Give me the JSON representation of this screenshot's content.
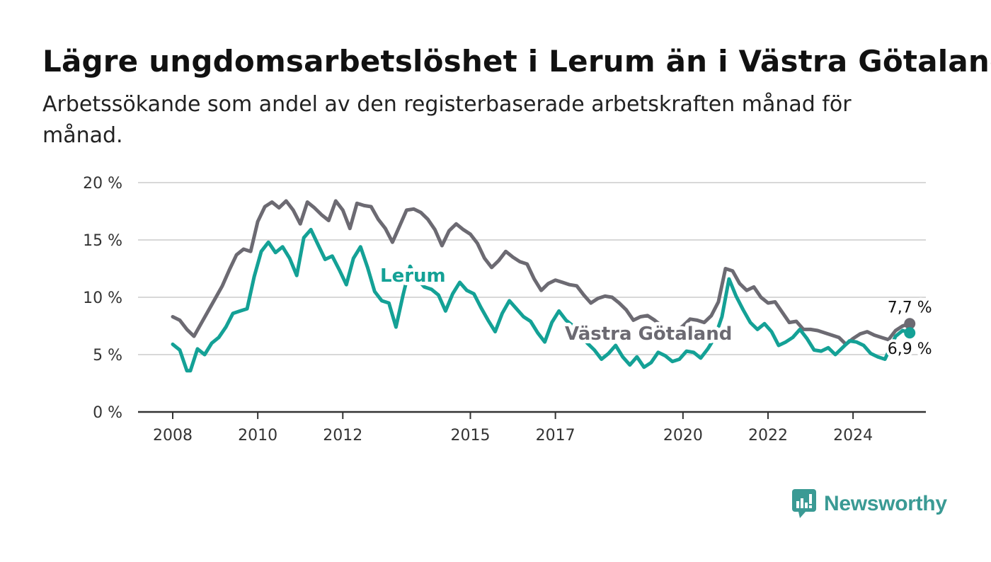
{
  "header": {
    "title": "Lägre ungdomsarbetslöshet i Lerum än i Västra Götaland",
    "subtitle": "Arbetssökande som andel av den registerbaserade arbetskraften månad för månad."
  },
  "brand": {
    "name": "Newsworthy",
    "color": "#3a9a94",
    "icon": "newsworthy-logo-icon"
  },
  "chart_data": {
    "type": "line",
    "x_start": "2008-01",
    "x_end": "2025-06",
    "x_tick_labels": [
      "2008",
      "2010",
      "2012",
      "2015",
      "2017",
      "2020",
      "2022",
      "2024"
    ],
    "y_tick_labels": [
      "0 %",
      "5 %",
      "10 %",
      "15 %",
      "20 %"
    ],
    "y_ticks": [
      0,
      5,
      10,
      15,
      20
    ],
    "ylim": [
      0,
      20
    ],
    "grid": true,
    "series": [
      {
        "name": "Västra Götaland",
        "color": "#6c6a72",
        "end_label": "7,7 %",
        "points": [
          [
            "2008-01",
            8.3
          ],
          [
            "2008-03",
            8.0
          ],
          [
            "2008-05",
            7.2
          ],
          [
            "2008-07",
            6.6
          ],
          [
            "2008-09",
            7.7
          ],
          [
            "2008-11",
            8.8
          ],
          [
            "2009-01",
            9.9
          ],
          [
            "2009-03",
            11.0
          ],
          [
            "2009-05",
            12.4
          ],
          [
            "2009-07",
            13.7
          ],
          [
            "2009-09",
            14.2
          ],
          [
            "2009-11",
            14.0
          ],
          [
            "2010-01",
            16.6
          ],
          [
            "2010-03",
            17.9
          ],
          [
            "2010-05",
            18.3
          ],
          [
            "2010-07",
            17.8
          ],
          [
            "2010-09",
            18.4
          ],
          [
            "2010-11",
            17.6
          ],
          [
            "2011-01",
            16.4
          ],
          [
            "2011-03",
            18.3
          ],
          [
            "2011-05",
            17.8
          ],
          [
            "2011-07",
            17.2
          ],
          [
            "2011-09",
            16.7
          ],
          [
            "2011-11",
            18.4
          ],
          [
            "2012-01",
            17.6
          ],
          [
            "2012-03",
            16.0
          ],
          [
            "2012-05",
            18.2
          ],
          [
            "2012-07",
            18.0
          ],
          [
            "2012-09",
            17.9
          ],
          [
            "2012-11",
            16.8
          ],
          [
            "2013-01",
            16.0
          ],
          [
            "2013-03",
            14.8
          ],
          [
            "2013-05",
            16.2
          ],
          [
            "2013-07",
            17.6
          ],
          [
            "2013-09",
            17.7
          ],
          [
            "2013-11",
            17.4
          ],
          [
            "2014-01",
            16.8
          ],
          [
            "2014-03",
            15.9
          ],
          [
            "2014-05",
            14.5
          ],
          [
            "2014-07",
            15.8
          ],
          [
            "2014-09",
            16.4
          ],
          [
            "2014-11",
            15.9
          ],
          [
            "2015-01",
            15.5
          ],
          [
            "2015-03",
            14.7
          ],
          [
            "2015-05",
            13.4
          ],
          [
            "2015-07",
            12.6
          ],
          [
            "2015-09",
            13.2
          ],
          [
            "2015-11",
            14.0
          ],
          [
            "2016-01",
            13.5
          ],
          [
            "2016-03",
            13.1
          ],
          [
            "2016-05",
            12.9
          ],
          [
            "2016-07",
            11.6
          ],
          [
            "2016-09",
            10.6
          ],
          [
            "2016-11",
            11.2
          ],
          [
            "2017-01",
            11.5
          ],
          [
            "2017-03",
            11.3
          ],
          [
            "2017-05",
            11.1
          ],
          [
            "2017-07",
            11.0
          ],
          [
            "2017-09",
            10.2
          ],
          [
            "2017-11",
            9.5
          ],
          [
            "2018-01",
            9.9
          ],
          [
            "2018-03",
            10.1
          ],
          [
            "2018-05",
            10.0
          ],
          [
            "2018-07",
            9.5
          ],
          [
            "2018-09",
            8.9
          ],
          [
            "2018-11",
            8.0
          ],
          [
            "2019-01",
            8.3
          ],
          [
            "2019-03",
            8.4
          ],
          [
            "2019-05",
            8.0
          ],
          [
            "2019-07",
            7.5
          ],
          [
            "2019-09",
            7.1
          ],
          [
            "2019-11",
            7.0
          ],
          [
            "2020-01",
            7.5
          ],
          [
            "2020-03",
            8.1
          ],
          [
            "2020-05",
            8.0
          ],
          [
            "2020-07",
            7.8
          ],
          [
            "2020-09",
            8.4
          ],
          [
            "2020-11",
            9.6
          ],
          [
            "2021-01",
            12.5
          ],
          [
            "2021-03",
            12.3
          ],
          [
            "2021-05",
            11.2
          ],
          [
            "2021-07",
            10.6
          ],
          [
            "2021-09",
            10.9
          ],
          [
            "2021-11",
            10.0
          ],
          [
            "2022-01",
            9.5
          ],
          [
            "2022-03",
            9.6
          ],
          [
            "2022-05",
            8.7
          ],
          [
            "2022-07",
            7.8
          ],
          [
            "2022-09",
            7.9
          ],
          [
            "2022-11",
            7.2
          ],
          [
            "2023-01",
            7.2
          ],
          [
            "2023-03",
            7.1
          ],
          [
            "2023-05",
            6.9
          ],
          [
            "2023-07",
            6.7
          ],
          [
            "2023-09",
            6.5
          ],
          [
            "2023-11",
            5.9
          ],
          [
            "2024-01",
            6.4
          ],
          [
            "2024-03",
            6.8
          ],
          [
            "2024-05",
            7.0
          ],
          [
            "2024-07",
            6.7
          ],
          [
            "2024-09",
            6.5
          ],
          [
            "2024-11",
            6.3
          ],
          [
            "2025-01",
            7.1
          ],
          [
            "2025-03",
            7.5
          ],
          [
            "2025-05",
            7.7
          ]
        ]
      },
      {
        "name": "Lerum",
        "color": "#14a196",
        "end_label": "6,9 %",
        "points": [
          [
            "2008-01",
            5.9
          ],
          [
            "2008-03",
            5.4
          ],
          [
            "2008-05",
            3.6
          ],
          [
            "2008-06",
            3.6
          ],
          [
            "2008-08",
            5.5
          ],
          [
            "2008-10",
            5.0
          ],
          [
            "2008-12",
            6.0
          ],
          [
            "2009-02",
            6.5
          ],
          [
            "2009-04",
            7.4
          ],
          [
            "2009-06",
            8.6
          ],
          [
            "2009-08",
            8.8
          ],
          [
            "2009-10",
            9.0
          ],
          [
            "2009-12",
            11.8
          ],
          [
            "2010-02",
            14.0
          ],
          [
            "2010-04",
            14.8
          ],
          [
            "2010-06",
            13.9
          ],
          [
            "2010-08",
            14.4
          ],
          [
            "2010-10",
            13.4
          ],
          [
            "2010-12",
            11.9
          ],
          [
            "2011-02",
            15.2
          ],
          [
            "2011-04",
            15.9
          ],
          [
            "2011-06",
            14.6
          ],
          [
            "2011-08",
            13.3
          ],
          [
            "2011-10",
            13.6
          ],
          [
            "2011-12",
            12.4
          ],
          [
            "2012-02",
            11.1
          ],
          [
            "2012-04",
            13.4
          ],
          [
            "2012-06",
            14.4
          ],
          [
            "2012-08",
            12.6
          ],
          [
            "2012-10",
            10.5
          ],
          [
            "2012-12",
            9.7
          ],
          [
            "2013-02",
            9.5
          ],
          [
            "2013-04",
            7.4
          ],
          [
            "2013-06",
            10.2
          ],
          [
            "2013-08",
            12.7
          ],
          [
            "2013-10",
            11.6
          ],
          [
            "2013-12",
            10.9
          ],
          [
            "2014-02",
            10.7
          ],
          [
            "2014-04",
            10.2
          ],
          [
            "2014-06",
            8.8
          ],
          [
            "2014-08",
            10.3
          ],
          [
            "2014-10",
            11.3
          ],
          [
            "2014-12",
            10.6
          ],
          [
            "2015-02",
            10.3
          ],
          [
            "2015-04",
            9.1
          ],
          [
            "2015-06",
            8.0
          ],
          [
            "2015-08",
            7.0
          ],
          [
            "2015-10",
            8.6
          ],
          [
            "2015-12",
            9.7
          ],
          [
            "2016-02",
            9.0
          ],
          [
            "2016-04",
            8.3
          ],
          [
            "2016-06",
            7.9
          ],
          [
            "2016-08",
            6.9
          ],
          [
            "2016-10",
            6.1
          ],
          [
            "2016-12",
            7.8
          ],
          [
            "2017-02",
            8.8
          ],
          [
            "2017-04",
            8.0
          ],
          [
            "2017-06",
            7.5
          ],
          [
            "2017-08",
            6.9
          ],
          [
            "2017-10",
            6.0
          ],
          [
            "2017-12",
            5.4
          ],
          [
            "2018-02",
            4.6
          ],
          [
            "2018-04",
            5.1
          ],
          [
            "2018-06",
            5.8
          ],
          [
            "2018-08",
            4.8
          ],
          [
            "2018-10",
            4.1
          ],
          [
            "2018-12",
            4.8
          ],
          [
            "2019-02",
            3.9
          ],
          [
            "2019-04",
            4.3
          ],
          [
            "2019-06",
            5.2
          ],
          [
            "2019-08",
            4.9
          ],
          [
            "2019-10",
            4.4
          ],
          [
            "2019-12",
            4.6
          ],
          [
            "2020-02",
            5.3
          ],
          [
            "2020-04",
            5.2
          ],
          [
            "2020-06",
            4.7
          ],
          [
            "2020-08",
            5.5
          ],
          [
            "2020-10",
            6.5
          ],
          [
            "2020-12",
            8.3
          ],
          [
            "2021-02",
            11.6
          ],
          [
            "2021-04",
            10.1
          ],
          [
            "2021-06",
            8.9
          ],
          [
            "2021-08",
            7.8
          ],
          [
            "2021-10",
            7.2
          ],
          [
            "2021-12",
            7.7
          ],
          [
            "2022-02",
            7.0
          ],
          [
            "2022-04",
            5.8
          ],
          [
            "2022-06",
            6.1
          ],
          [
            "2022-08",
            6.5
          ],
          [
            "2022-10",
            7.2
          ],
          [
            "2022-12",
            6.4
          ],
          [
            "2023-02",
            5.4
          ],
          [
            "2023-04",
            5.3
          ],
          [
            "2023-06",
            5.6
          ],
          [
            "2023-08",
            5.0
          ],
          [
            "2023-10",
            5.6
          ],
          [
            "2023-12",
            6.2
          ],
          [
            "2024-02",
            6.1
          ],
          [
            "2024-04",
            5.8
          ],
          [
            "2024-06",
            5.1
          ],
          [
            "2024-08",
            4.8
          ],
          [
            "2024-10",
            4.6
          ],
          [
            "2025-01",
            6.6
          ],
          [
            "2025-03",
            7.1
          ],
          [
            "2025-05",
            6.9
          ]
        ]
      }
    ]
  }
}
